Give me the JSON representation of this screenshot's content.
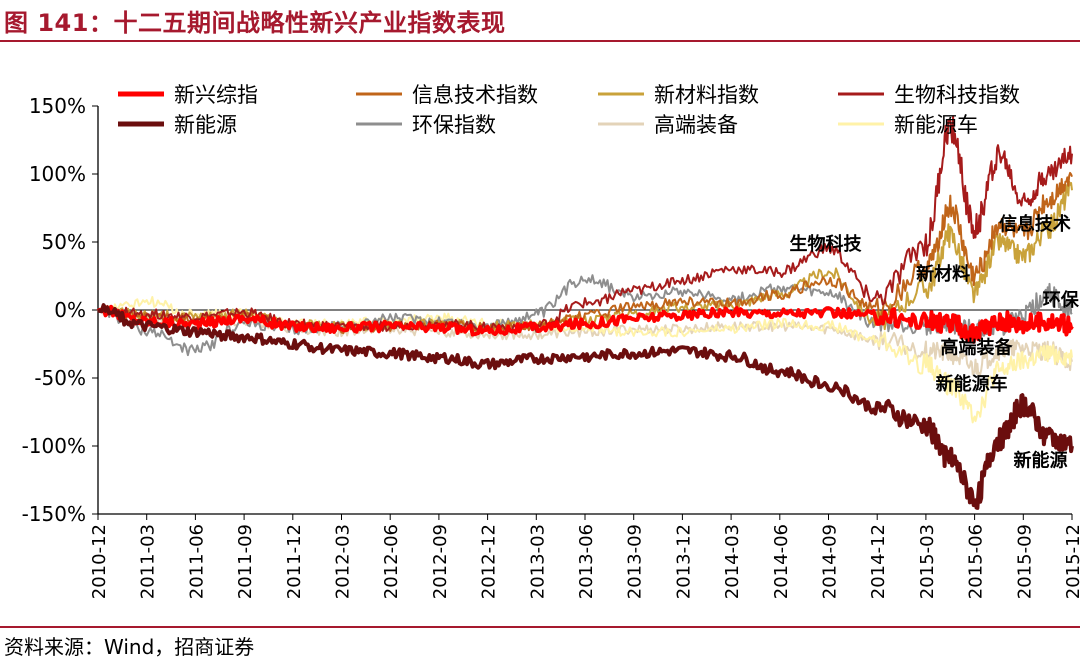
{
  "title": "图 141：十二五期间战略性新兴产业指数表现",
  "source": "资料来源：Wind，招商证券",
  "chart_data": {
    "type": "line",
    "y_unit": "%",
    "ylim": [
      -150,
      150
    ],
    "y_ticks": [
      150,
      100,
      50,
      0,
      -50,
      -100,
      -150
    ],
    "y_tick_labels": [
      "150%",
      "100%",
      "50%",
      "0%",
      "-50%",
      "-100%",
      "-150%"
    ],
    "x_tick_labels": [
      "2010-12",
      "2011-03",
      "2011-06",
      "2011-09",
      "2011-12",
      "2012-03",
      "2012-06",
      "2012-09",
      "2012-12",
      "2013-03",
      "2013-06",
      "2013-09",
      "2013-12",
      "2014-03",
      "2014-06",
      "2014-09",
      "2014-12",
      "2015-03",
      "2015-06",
      "2015-09",
      "2015-12"
    ],
    "legend_position": "top",
    "series": [
      {
        "name": "新兴综指",
        "color": "#ff0000",
        "width": 4,
        "x": [
          0,
          1,
          2,
          3,
          4,
          5,
          6,
          7,
          8,
          9,
          10,
          11,
          12,
          13,
          14,
          15,
          16,
          17,
          17.5,
          18,
          18.5,
          19,
          19.5,
          20
        ],
        "y": [
          0,
          -8,
          -10,
          -6,
          -12,
          -13,
          -12,
          -13,
          -15,
          -13,
          -10,
          -6,
          -4,
          -2,
          -2,
          -2,
          -4,
          -8,
          -10,
          -18,
          -8,
          -10,
          -8,
          -12
        ]
      },
      {
        "name": "信息技术指数",
        "color": "#c0651a",
        "width": 2,
        "x": [
          0,
          1,
          2,
          3,
          4,
          5,
          6,
          7,
          8,
          9,
          10,
          11,
          12,
          13,
          14,
          15,
          16,
          17,
          17.5,
          18,
          18.5,
          19,
          19.5,
          20
        ],
        "y": [
          0,
          -5,
          -6,
          -4,
          -12,
          -14,
          -12,
          -11,
          -13,
          -12,
          -4,
          2,
          6,
          5,
          12,
          22,
          0,
          30,
          75,
          25,
          62,
          55,
          80,
          98
        ]
      },
      {
        "name": "新材料指数",
        "color": "#c9a23a",
        "width": 2,
        "x": [
          0,
          1,
          2,
          3,
          4,
          5,
          6,
          7,
          8,
          9,
          10,
          11,
          12,
          13,
          14,
          15,
          16,
          17,
          17.5,
          18,
          18.5,
          19,
          19.5,
          20
        ],
        "y": [
          0,
          -4,
          -4,
          -3,
          -10,
          -12,
          -11,
          -10,
          -12,
          -11,
          -7,
          -2,
          2,
          4,
          12,
          28,
          -8,
          16,
          55,
          12,
          50,
          40,
          60,
          88
        ]
      },
      {
        "name": "生物科技指数",
        "color": "#a61b1b",
        "width": 2,
        "x": [
          0,
          1,
          2,
          3,
          4,
          5,
          6,
          7,
          8,
          9,
          10,
          11,
          12,
          13,
          14,
          15,
          16,
          17,
          17.5,
          18,
          18.5,
          19,
          19.5,
          20
        ],
        "y": [
          0,
          -3,
          -5,
          -2,
          -10,
          -12,
          -12,
          -10,
          -12,
          -12,
          5,
          14,
          22,
          30,
          28,
          45,
          8,
          48,
          135,
          60,
          115,
          80,
          100,
          115
        ]
      },
      {
        "name": "新能源",
        "color": "#6b0e0e",
        "width": 4,
        "x": [
          0,
          1,
          2,
          3,
          4,
          5,
          6,
          7,
          8,
          9,
          10,
          11,
          12,
          13,
          14,
          15,
          16,
          17,
          17.5,
          18,
          18.5,
          19,
          19.5,
          20
        ],
        "y": [
          0,
          -12,
          -16,
          -20,
          -25,
          -30,
          -32,
          -35,
          -40,
          -36,
          -34,
          -32,
          -30,
          -34,
          -45,
          -55,
          -72,
          -85,
          -110,
          -138,
          -95,
          -70,
          -92,
          -100
        ]
      },
      {
        "name": "环保指数",
        "color": "#8e8e8e",
        "width": 2,
        "x": [
          0,
          1,
          2,
          3,
          4,
          5,
          6,
          7,
          8,
          9,
          10,
          11,
          12,
          13,
          14,
          15,
          16,
          17,
          17.5,
          18,
          18.5,
          19,
          19.5,
          20
        ],
        "y": [
          0,
          -15,
          -30,
          -10,
          -15,
          -12,
          -6,
          -8,
          -12,
          -4,
          24,
          10,
          14,
          8,
          16,
          12,
          -10,
          -12,
          -10,
          -15,
          -12,
          -5,
          12,
          -2
        ]
      },
      {
        "name": "高端装备",
        "color": "#e3d3b8",
        "width": 2,
        "x": [
          0,
          1,
          2,
          3,
          4,
          5,
          6,
          7,
          8,
          9,
          10,
          11,
          12,
          13,
          14,
          15,
          16,
          17,
          17.5,
          18,
          18.5,
          19,
          19.5,
          20
        ],
        "y": [
          0,
          -6,
          -10,
          -8,
          -14,
          -16,
          -14,
          -16,
          -18,
          -18,
          -16,
          -14,
          -14,
          -12,
          -12,
          -14,
          -22,
          -30,
          -32,
          -42,
          -30,
          -28,
          -30,
          -38
        ]
      },
      {
        "name": "新能源车",
        "color": "#fff2a8",
        "width": 2,
        "x": [
          0,
          1,
          2,
          3,
          4,
          5,
          6,
          7,
          8,
          9,
          10,
          11,
          12,
          13,
          14,
          15,
          16,
          17,
          17.5,
          18,
          18.5,
          19,
          19.5,
          20
        ],
        "y": [
          0,
          6,
          -4,
          -2,
          -10,
          -10,
          -8,
          -6,
          -10,
          -12,
          -14,
          -16,
          -16,
          -14,
          -10,
          -12,
          -22,
          -40,
          -55,
          -75,
          -45,
          -38,
          -32,
          -35
        ]
      }
    ],
    "annotations": [
      {
        "text": "生物科技",
        "x": 14.2,
        "y": 44
      },
      {
        "text": "信息技术",
        "x": 18.5,
        "y": 59
      },
      {
        "text": "新材料",
        "x": 16.8,
        "y": 22
      },
      {
        "text": "环保",
        "x": 19.4,
        "y": 3
      },
      {
        "text": "高端装备",
        "x": 17.3,
        "y": -32
      },
      {
        "text": "新能源车",
        "x": 17.2,
        "y": -59
      },
      {
        "text": "新能源",
        "x": 18.8,
        "y": -115
      }
    ]
  }
}
